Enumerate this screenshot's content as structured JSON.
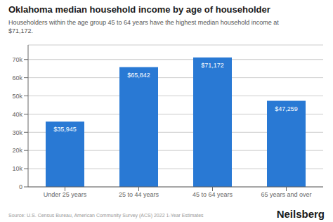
{
  "chart_data": {
    "type": "bar",
    "title": "Oklahoma median household income by age of householder",
    "subtitle": "Householders within the age group 45 to 64 years have the highest median household income at\n$71,172.",
    "categories": [
      "Under 25 years",
      "25 to 44 years",
      "45 to 64 years",
      "65 years and over"
    ],
    "values": [
      35945,
      65842,
      71172,
      47259
    ],
    "value_labels": [
      "$35,945",
      "$65,842",
      "$71,172",
      "$47,259"
    ],
    "data_labels": true,
    "color": "#2979d4",
    "ylim": [
      0,
      78000
    ],
    "yticks": [
      0,
      {
        "value": 10000,
        "label": "10k"
      },
      {
        "value": 20000,
        "label": "20k"
      },
      {
        "value": 30000,
        "label": "30k"
      },
      {
        "value": 40000,
        "label": "40k"
      },
      {
        "value": 50000,
        "label": "50k"
      },
      {
        "value": 60000,
        "label": "60k"
      },
      {
        "value": 70000,
        "label": "70k"
      }
    ],
    "grid": true,
    "annotations": [
      "Source: U.S. Census Bureau, American Community Survey (ACS) 2022 1-Year Estimates",
      "Neilsberg"
    ]
  }
}
